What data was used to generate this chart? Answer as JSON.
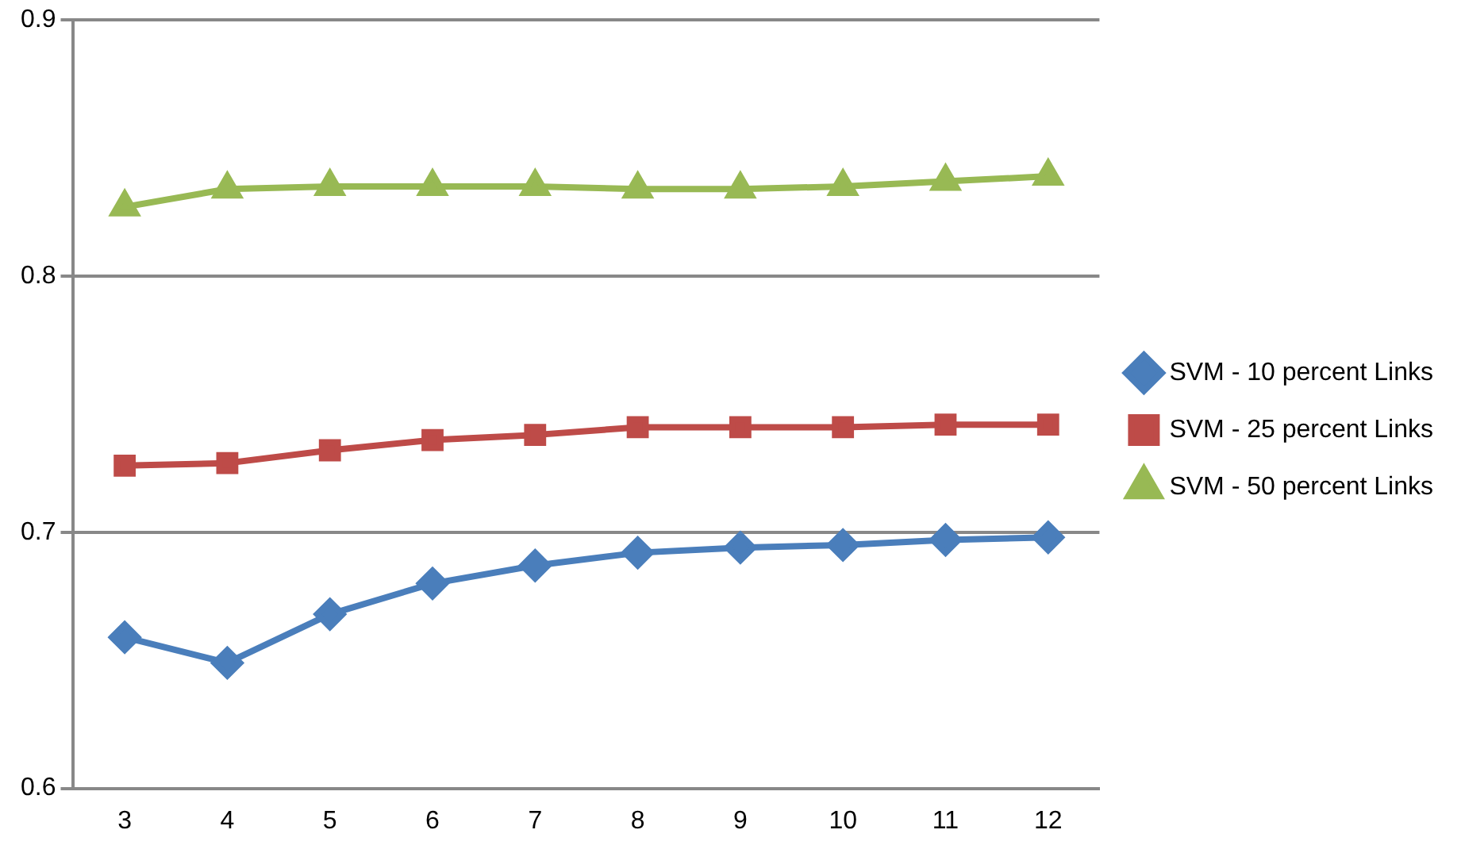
{
  "chart_data": {
    "type": "line",
    "categories": [
      "3",
      "4",
      "5",
      "6",
      "7",
      "8",
      "9",
      "10",
      "11",
      "12"
    ],
    "series": [
      {
        "name": "SVM - 10 percent Links",
        "color": "#4a7ebb",
        "marker": "diamond",
        "values": [
          0.659,
          0.649,
          0.668,
          0.68,
          0.687,
          0.692,
          0.694,
          0.695,
          0.697,
          0.698
        ]
      },
      {
        "name": "SVM - 25 percent Links",
        "color": "#be4b48",
        "marker": "square",
        "values": [
          0.726,
          0.727,
          0.732,
          0.736,
          0.738,
          0.741,
          0.741,
          0.741,
          0.742,
          0.742
        ]
      },
      {
        "name": "SVM - 50 percent Links",
        "color": "#98b954",
        "marker": "triangle",
        "values": [
          0.827,
          0.834,
          0.835,
          0.835,
          0.835,
          0.834,
          0.834,
          0.835,
          0.837,
          0.839
        ]
      }
    ],
    "ylim": [
      0.6,
      0.9
    ],
    "yticks": [
      0.6,
      0.7,
      0.8,
      0.9
    ],
    "grid": "y",
    "legend": "right",
    "line_style": "solid"
  }
}
